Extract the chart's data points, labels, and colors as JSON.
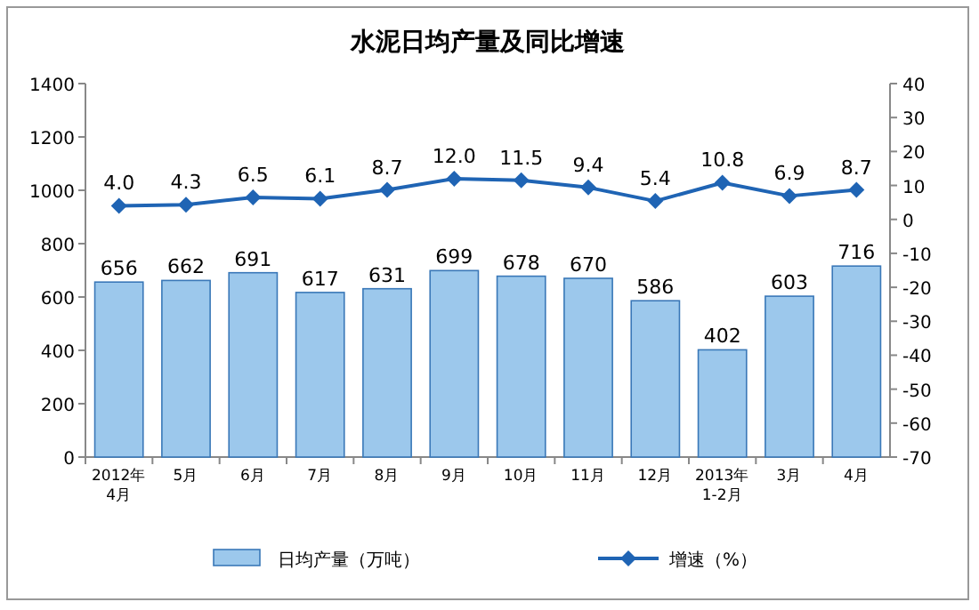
{
  "chart_data": {
    "type": "bar",
    "title": "水泥日均产量及同比增速",
    "categories": [
      "2012年\n4月",
      "5月",
      "6月",
      "7月",
      "8月",
      "9月",
      "10月",
      "11月",
      "12月",
      "2013年\n1-2月",
      "3月",
      "4月"
    ],
    "series": [
      {
        "name": "日均产量（万吨）",
        "color": "#9cc8ec",
        "values": [
          656,
          662,
          691,
          617,
          631,
          699,
          678,
          670,
          586,
          402,
          603,
          716
        ],
        "value_labels": [
          "656",
          "662",
          "691",
          "617",
          "631",
          "699",
          "678",
          "670",
          "586",
          "402",
          "603",
          "716"
        ]
      },
      {
        "name": "增速（%）",
        "type": "line",
        "axis": "y2",
        "color": "#1f64b4",
        "marker": "diamond",
        "values": [
          4.0,
          4.3,
          6.5,
          6.1,
          8.7,
          12.0,
          11.5,
          9.4,
          5.4,
          10.8,
          6.9,
          8.7
        ],
        "value_labels": [
          "4.0",
          "4.3",
          "6.5",
          "6.1",
          "8.7",
          "12.0",
          "11.5",
          "9.4",
          "5.4",
          "10.8",
          "6.9",
          "8.7"
        ]
      }
    ],
    "ylim": [
      0,
      1400
    ],
    "yticks": [
      0,
      200,
      400,
      600,
      800,
      1000,
      1200,
      1400
    ],
    "y2lim": [
      -70,
      40
    ],
    "y2ticks": [
      -70,
      -60,
      -50,
      -40,
      -30,
      -20,
      -10,
      0,
      10,
      20,
      30,
      40
    ],
    "grid": false,
    "legend": "bottom"
  }
}
